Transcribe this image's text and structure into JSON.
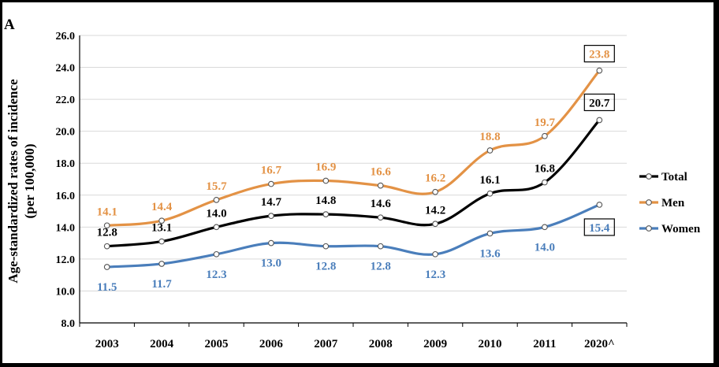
{
  "chart_data": {
    "type": "line",
    "panel_label": "A",
    "title": "",
    "xlabel": "",
    "ylabel_line1": "Age-standardized rates of incidence",
    "ylabel_line2": "(per 100,000)",
    "categories": [
      "2003",
      "2004",
      "2005",
      "2006",
      "2007",
      "2008",
      "2009",
      "2010",
      "2011",
      "2020^"
    ],
    "ylim": [
      8.0,
      26.0
    ],
    "yticks": [
      8.0,
      10.0,
      12.0,
      14.0,
      16.0,
      18.0,
      20.0,
      22.0,
      24.0,
      26.0
    ],
    "ytick_labels": [
      "8.0",
      "10.0",
      "12.0",
      "14.0",
      "16.0",
      "18.0",
      "20.0",
      "22.0",
      "24.0",
      "26.0"
    ],
    "grid": true,
    "legend_position": "right",
    "series": [
      {
        "name": "Total",
        "color": "#000000",
        "values": [
          12.8,
          13.1,
          14.0,
          14.7,
          14.8,
          14.6,
          14.2,
          16.1,
          16.8,
          20.7
        ],
        "labels": [
          "12.8",
          "13.1",
          "14.0",
          "14.7",
          "14.8",
          "14.6",
          "14.2",
          "16.1",
          "16.8",
          "20.7"
        ],
        "label_placement": "above",
        "boxed_last_label": true
      },
      {
        "name": "Men",
        "color": "#e39245",
        "values": [
          14.1,
          14.4,
          15.7,
          16.7,
          16.9,
          16.6,
          16.2,
          18.8,
          19.7,
          23.8
        ],
        "labels": [
          "14.1",
          "14.4",
          "15.7",
          "16.7",
          "16.9",
          "16.6",
          "16.2",
          "18.8",
          "19.7",
          "23.8"
        ],
        "label_placement": "above",
        "boxed_last_label": true
      },
      {
        "name": "Women",
        "color": "#4a7ebb",
        "values": [
          11.5,
          11.7,
          12.3,
          13.0,
          12.8,
          12.8,
          12.3,
          13.6,
          14.0,
          15.4
        ],
        "labels": [
          "11.5",
          "11.7",
          "12.3",
          "13.0",
          "12.8",
          "12.8",
          "12.3",
          "13.6",
          "14.0",
          "15.4"
        ],
        "label_placement": "below",
        "boxed_last_label": true
      }
    ]
  }
}
